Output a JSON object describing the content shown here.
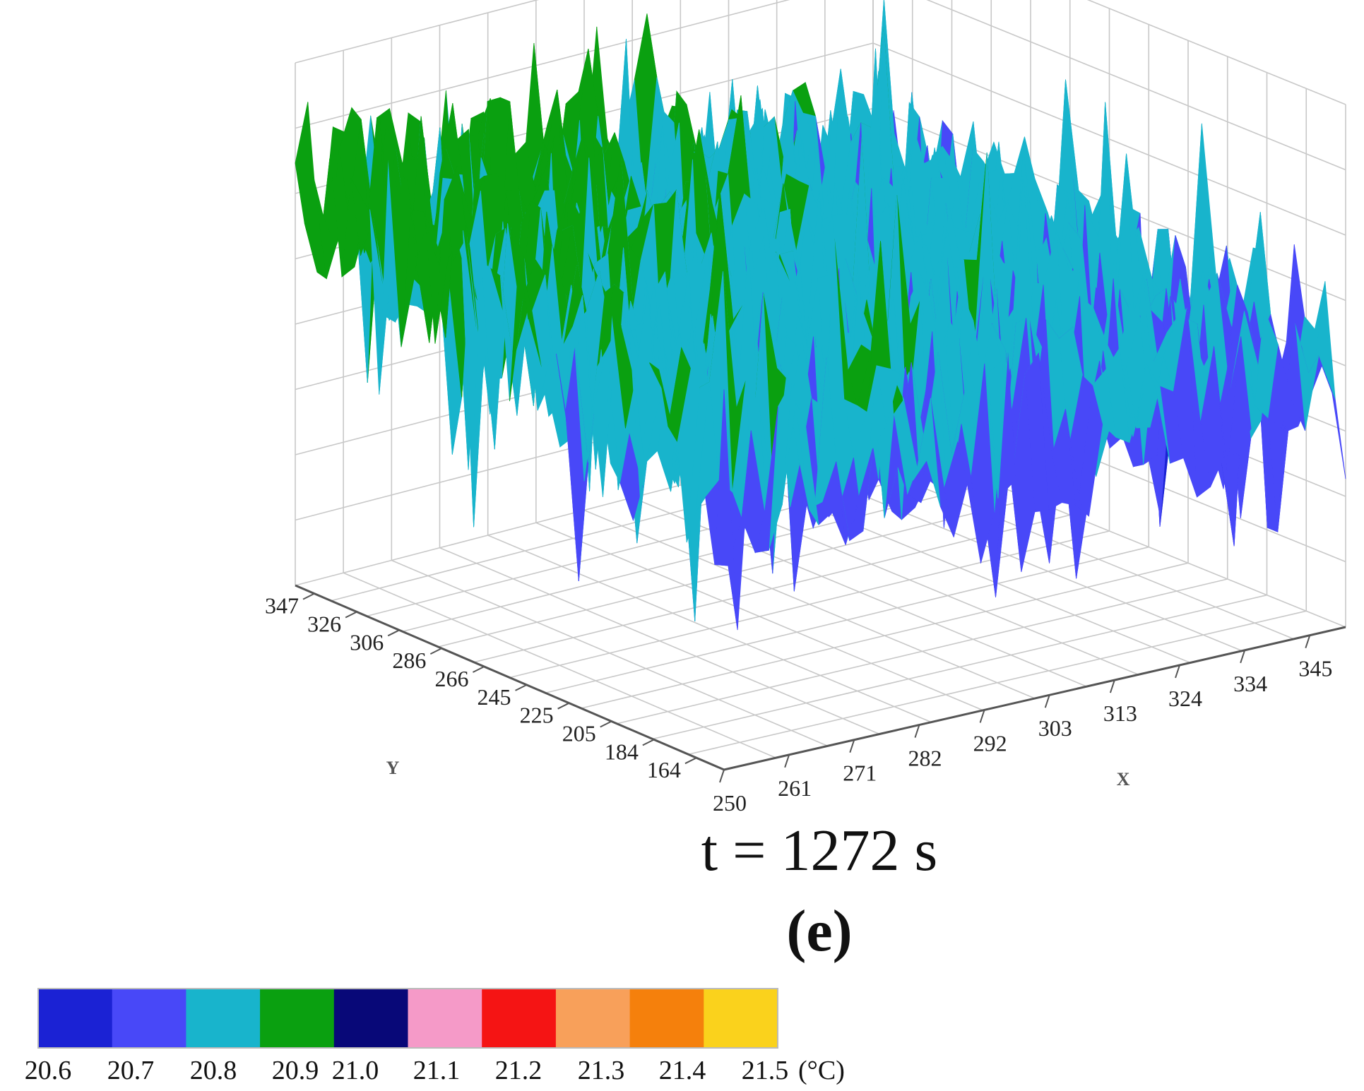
{
  "chart_data": {
    "type": "surface3d",
    "title": "t = 1272 s",
    "panel_label": "(e)",
    "x": {
      "label": "X",
      "ticks": [
        "250",
        "261",
        "271",
        "282",
        "292",
        "303",
        "313",
        "324",
        "334",
        "345"
      ]
    },
    "y": {
      "label": "Y",
      "ticks": [
        "347",
        "326",
        "306",
        "286",
        "266",
        "245",
        "225",
        "205",
        "184",
        "164"
      ]
    },
    "z_range": [
      20.6,
      21.0
    ],
    "grid": true,
    "surface": "noisy temperature field, mostly 20.6–20.9 °C; higher (20.9, green) toward the back-left corner, lower (20.6–20.7, blue) toward the front-right",
    "colorbar": {
      "ticks": [
        "20.6",
        "20.7",
        "20.8",
        "20.9",
        "21.0",
        "21.1",
        "21.2",
        "21.3",
        "21.4",
        "21.5"
      ],
      "unit": "(°C)",
      "colors": [
        "#1b22d4",
        "#4848f8",
        "#18b4cc",
        "#0aa010",
        "#080878",
        "#f59ac8",
        "#f51414",
        "#f8a05a",
        "#f5800c",
        "#fad21c"
      ]
    }
  }
}
